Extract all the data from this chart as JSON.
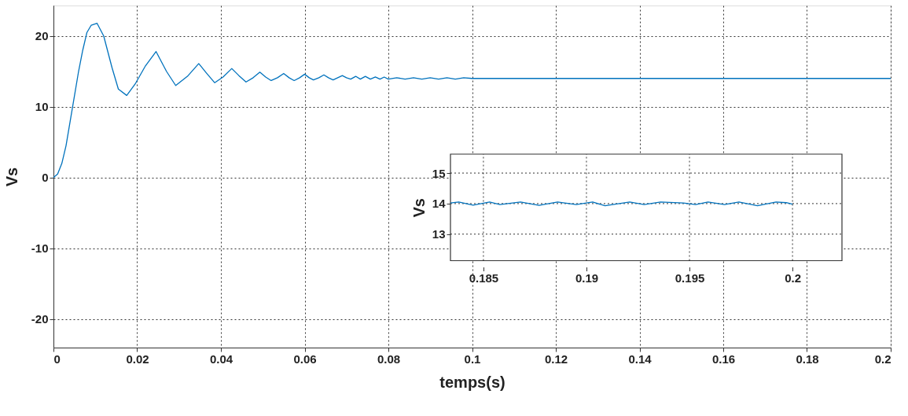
{
  "chart_data": [
    {
      "type": "line",
      "xlabel": "temps(s)",
      "ylabel": "Vs",
      "grid": true,
      "xlim": [
        0,
        0.2
      ],
      "ylim": [
        -24,
        24.3
      ],
      "xticks": [
        0,
        0.02,
        0.04,
        0.06,
        0.08,
        0.1,
        0.12,
        0.14,
        0.16,
        0.18,
        0.2
      ],
      "yticks": [
        -20,
        -10,
        0,
        10,
        20
      ],
      "series": [
        {
          "color": "#0072bd",
          "x": [
            0,
            0.001,
            0.002,
            0.003,
            0.004,
            0.005,
            0.006,
            0.007,
            0.008,
            0.009,
            0.0104,
            0.012,
            0.014,
            0.0155,
            0.0175,
            0.0195,
            0.022,
            0.0245,
            0.027,
            0.0292,
            0.032,
            0.0347,
            0.0365,
            0.0385,
            0.0405,
            0.0426,
            0.0443,
            0.046,
            0.0477,
            0.0493,
            0.0507,
            0.052,
            0.0535,
            0.055,
            0.0563,
            0.0575,
            0.0588,
            0.06,
            0.0611,
            0.0621,
            0.0634,
            0.0646,
            0.0657,
            0.0668,
            0.0679,
            0.069,
            0.07,
            0.071,
            0.0722,
            0.0733,
            0.0745,
            0.0757,
            0.0769,
            0.078,
            0.079,
            0.08,
            0.082,
            0.084,
            0.086,
            0.088,
            0.09,
            0.092,
            0.094,
            0.096,
            0.098,
            0.1,
            0.12,
            0.15,
            0.2
          ],
          "values": [
            0,
            0.5,
            2,
            4.5,
            8,
            11.5,
            15,
            18,
            20.5,
            21.5,
            21.8,
            20,
            15.5,
            12.5,
            11.6,
            13.2,
            15.8,
            17.8,
            15,
            13.0,
            14.3,
            16.1,
            14.8,
            13.4,
            14.2,
            15.4,
            14.4,
            13.5,
            14.1,
            14.9,
            14.2,
            13.7,
            14.1,
            14.7,
            14.1,
            13.7,
            14.1,
            14.6,
            14.1,
            13.8,
            14.1,
            14.5,
            14.1,
            13.8,
            14.1,
            14.4,
            14.1,
            13.9,
            14.3,
            13.9,
            14.3,
            13.9,
            14.2,
            13.9,
            14.2,
            13.9,
            14.1,
            13.9,
            14.1,
            13.9,
            14.1,
            13.9,
            14.1,
            13.9,
            14.1,
            14,
            14,
            14,
            14
          ]
        }
      ]
    },
    {
      "type": "line",
      "ylabel": "Vs",
      "grid": true,
      "xlim": [
        0.1834,
        0.2024
      ],
      "ylim": [
        12.13,
        15.62
      ],
      "xticks": [
        0.185,
        0.19,
        0.195,
        0.2
      ],
      "yticks": [
        13,
        14,
        15
      ],
      "series": [
        {
          "color": "#0072bd",
          "x": [
            0.1834,
            0.1838,
            0.1845,
            0.1853,
            0.1858,
            0.1868,
            0.1877,
            0.1886,
            0.1895,
            0.1903,
            0.1909,
            0.1921,
            0.1928,
            0.1936,
            0.1947,
            0.1953,
            0.1959,
            0.1967,
            0.1974,
            0.1983,
            0.1992,
            0.1997,
            0.2
          ],
          "values": [
            14.02,
            14.05,
            13.95,
            14.05,
            13.97,
            14.05,
            13.94,
            14.05,
            13.97,
            14.05,
            13.93,
            14.05,
            13.97,
            14.05,
            14.02,
            13.97,
            14.05,
            13.97,
            14.05,
            13.93,
            14.05,
            14.03,
            13.98
          ]
        }
      ]
    }
  ]
}
